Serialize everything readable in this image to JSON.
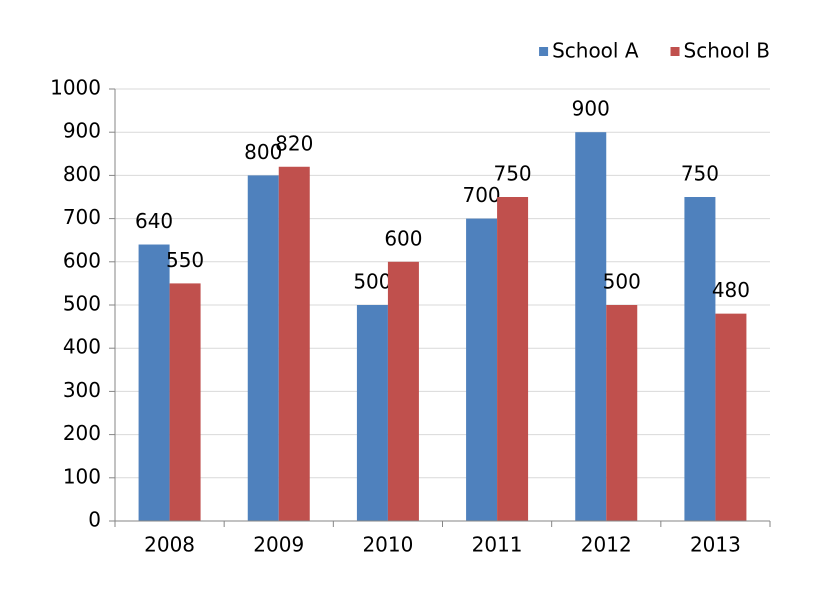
{
  "chart_data": {
    "type": "bar",
    "categories": [
      "2008",
      "2009",
      "2010",
      "2011",
      "2012",
      "2013"
    ],
    "series": [
      {
        "name": "School A",
        "color": "#4f81bd",
        "values": [
          640,
          800,
          500,
          700,
          900,
          750
        ]
      },
      {
        "name": "School B",
        "color": "#c0504d",
        "values": [
          550,
          820,
          600,
          750,
          500,
          480
        ]
      }
    ],
    "ylim": [
      0,
      1000
    ],
    "yticks": [
      0,
      100,
      200,
      300,
      400,
      500,
      600,
      700,
      800,
      900,
      1000
    ],
    "grid": true,
    "legend": "top-right"
  }
}
